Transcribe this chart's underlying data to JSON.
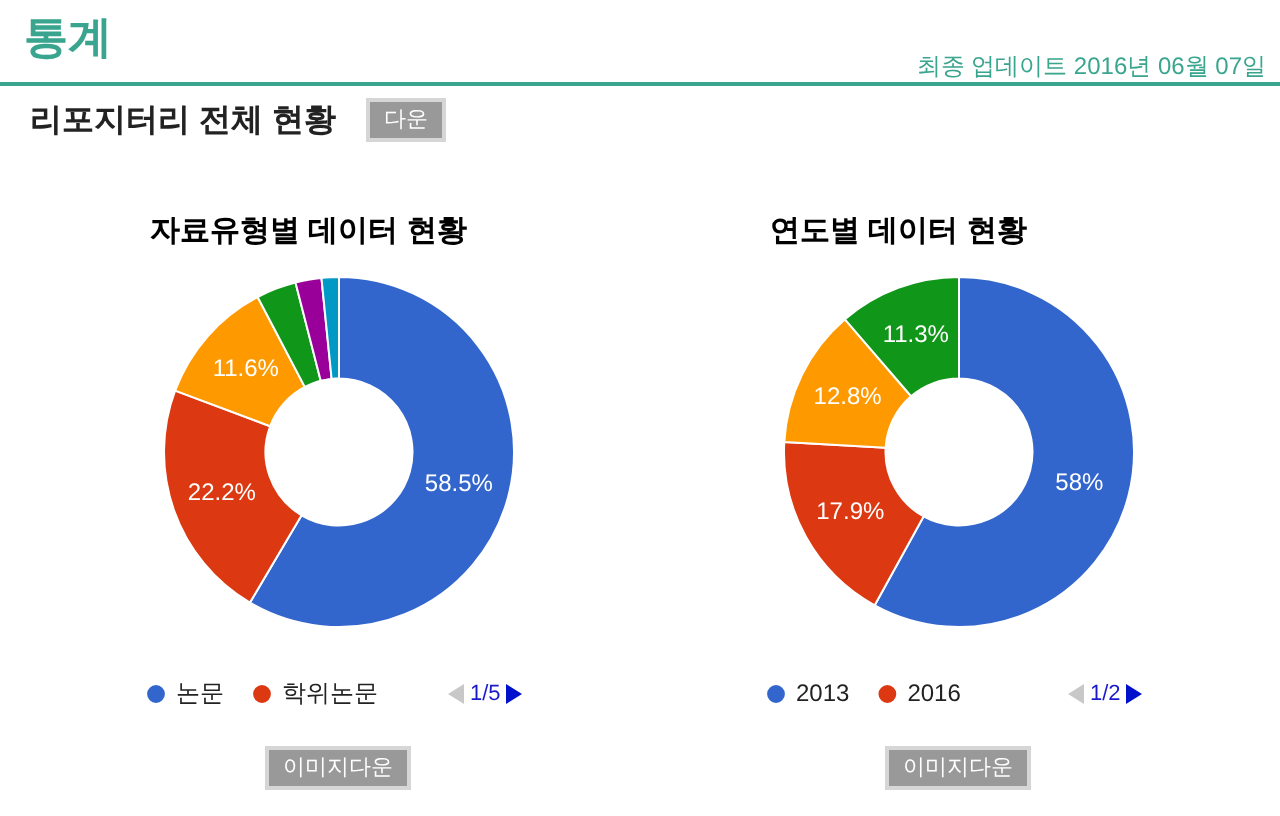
{
  "chart_data": [
    {
      "type": "other",
      "title": "통계",
      "subtitle": "리포지터리 전체 현황",
      "annotations": [
        "최종 업데이트 2016년 06월 07일",
        "다운"
      ]
    },
    {
      "type": "donut",
      "title": "자료유형별 데이터 현황",
      "categories": [
        "논문",
        "학위논문",
        null,
        null,
        null,
        null
      ],
      "values": [
        58.5,
        22.2,
        11.6,
        3.7,
        2.4,
        1.6
      ],
      "colors": [
        "#3366cc",
        "#dc3912",
        "#ff9900",
        "#109618",
        "#990099",
        "#0099c6"
      ],
      "value_labels": [
        "58.5%",
        "22.2%",
        "11.6%",
        null,
        null,
        null
      ],
      "legend": "bottom left",
      "annotations": [
        "1/5",
        "이미지다운"
      ]
    },
    {
      "type": "donut",
      "title": "연도별 데이터 현황",
      "categories": [
        "2013",
        "2016",
        null,
        null
      ],
      "values": [
        58,
        17.9,
        12.8,
        11.3
      ],
      "colors": [
        "#3366cc",
        "#dc3912",
        "#ff9900",
        "#109618"
      ],
      "value_labels": [
        "58%",
        "17.9%",
        "12.8%",
        "11.3%"
      ],
      "legend": "bottom left",
      "annotations": [
        "1/2",
        "이미지다운"
      ]
    }
  ]
}
